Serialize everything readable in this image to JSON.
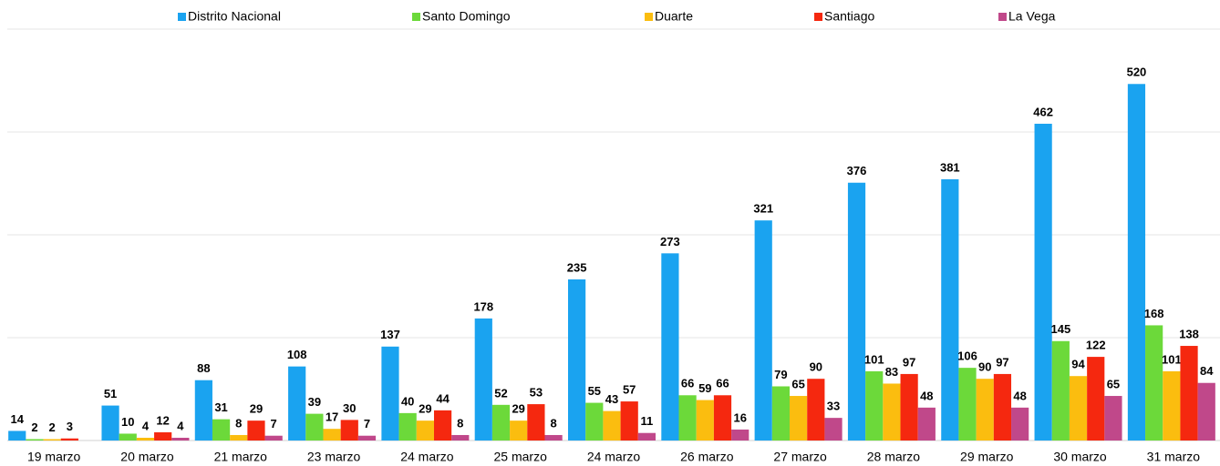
{
  "chart_data": {
    "type": "bar",
    "categories": [
      "19 marzo",
      "20 marzo",
      "21 marzo",
      "23 marzo",
      "24 marzo",
      "25 marzo",
      "24 marzo",
      "26 marzo",
      "27 marzo",
      "28 marzo",
      "29 marzo",
      "30 marzo",
      "31 marzo"
    ],
    "series": [
      {
        "name": "Distrito Nacional",
        "color": "#1aa3f0",
        "values": [
          14,
          51,
          88,
          108,
          137,
          178,
          235,
          273,
          321,
          376,
          381,
          462,
          520
        ]
      },
      {
        "name": "Santo Domingo",
        "color": "#6cd93a",
        "values": [
          2,
          10,
          31,
          39,
          40,
          52,
          55,
          66,
          79,
          101,
          106,
          145,
          168
        ]
      },
      {
        "name": "Duarte",
        "color": "#fbbd0f",
        "values": [
          2,
          4,
          8,
          17,
          29,
          29,
          43,
          59,
          65,
          83,
          90,
          94,
          101
        ]
      },
      {
        "name": "Santiago",
        "color": "#f5280f",
        "values": [
          3,
          12,
          29,
          30,
          44,
          53,
          57,
          66,
          90,
          97,
          97,
          122,
          138
        ]
      },
      {
        "name": "La Vega",
        "color": "#c0488a",
        "values": [
          null,
          4,
          7,
          7,
          8,
          8,
          11,
          16,
          33,
          48,
          48,
          65,
          84
        ]
      }
    ],
    "ylim": [
      0,
      600
    ],
    "yticks": [
      0,
      150,
      300,
      450,
      600
    ],
    "grid": true,
    "legend": "top"
  }
}
